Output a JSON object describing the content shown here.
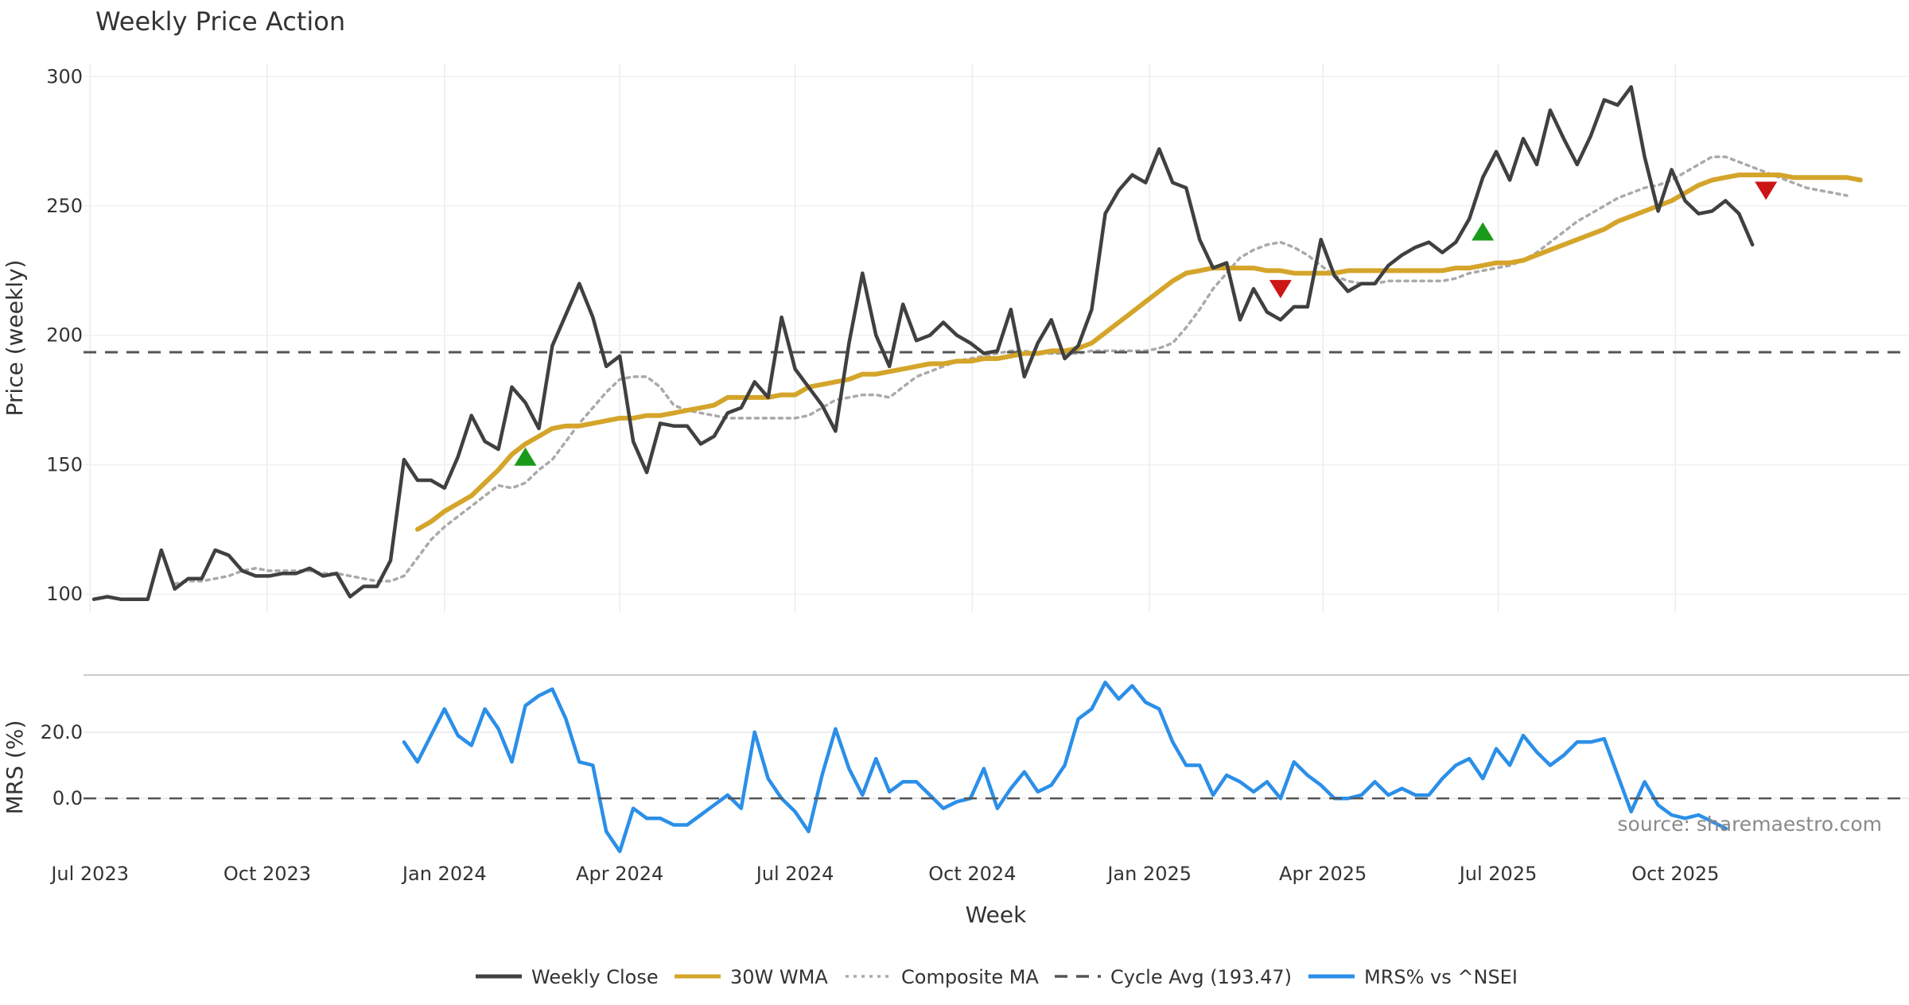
{
  "chart_data": {
    "type": "line",
    "title": "Weekly Price Action",
    "source_note": "source: sharemaestro.com",
    "xlabel": "Week",
    "x_range": [
      "2023-07-03",
      "2025-12-15"
    ],
    "x_ticks": [
      {
        "label": "Jul 2023",
        "date": "2023-07-01"
      },
      {
        "label": "Oct 2023",
        "date": "2023-10-01"
      },
      {
        "label": "Jan 2024",
        "date": "2024-01-01"
      },
      {
        "label": "Apr 2024",
        "date": "2024-04-01"
      },
      {
        "label": "Jul 2024",
        "date": "2024-07-01"
      },
      {
        "label": "Oct 2024",
        "date": "2024-10-01"
      },
      {
        "label": "Jan 2025",
        "date": "2025-01-01"
      },
      {
        "label": "Apr 2025",
        "date": "2025-04-01"
      },
      {
        "label": "Jul 2025",
        "date": "2025-07-01"
      },
      {
        "label": "Oct 2025",
        "date": "2025-10-01"
      }
    ],
    "price_panel": {
      "ylabel": "Price (weekly)",
      "ylim": [
        93,
        305
      ],
      "y_ticks": [
        100,
        150,
        200,
        250,
        300
      ],
      "series": [
        {
          "name": "Weekly Close",
          "color": "#404040",
          "start": "2023-07-03",
          "values": [
            98,
            99,
            98,
            98,
            98,
            117,
            102,
            106,
            106,
            117,
            115,
            109,
            107,
            107,
            108,
            108,
            110,
            107,
            108,
            99,
            103,
            103,
            113,
            152,
            144,
            144,
            141,
            153,
            169,
            159,
            156,
            180,
            174,
            164,
            196,
            208,
            220,
            207,
            188,
            192,
            159,
            147,
            166,
            165,
            165,
            158,
            161,
            170,
            172,
            182,
            176,
            207,
            187,
            180,
            173,
            163,
            197,
            224,
            200,
            188,
            212,
            198,
            200,
            205,
            200,
            197,
            193,
            194,
            210,
            184,
            197,
            206,
            191,
            196,
            210,
            247,
            256,
            262,
            259,
            272,
            259,
            257,
            237,
            226,
            228,
            206,
            218,
            209,
            206,
            211,
            211,
            237,
            223,
            217,
            220,
            220,
            227,
            231,
            234,
            236,
            232,
            236,
            245,
            261,
            271,
            260,
            276,
            266,
            287,
            276,
            266,
            277,
            291,
            289,
            296,
            269,
            248,
            264,
            252,
            247,
            248,
            252,
            247,
            235
          ]
        },
        {
          "name": "30W WMA",
          "color": "#d4a52a",
          "start": "2023-12-18",
          "values": [
            125,
            128,
            132,
            135,
            138,
            143,
            148,
            154,
            158,
            161,
            164,
            165,
            165,
            166,
            167,
            168,
            168,
            169,
            169,
            170,
            171,
            172,
            173,
            176,
            176,
            176,
            176,
            177,
            177,
            180,
            181,
            182,
            183,
            185,
            185,
            186,
            187,
            188,
            189,
            189,
            190,
            190,
            191,
            191,
            192,
            193,
            193,
            194,
            194,
            195,
            197,
            201,
            205,
            209,
            213,
            217,
            221,
            224,
            225,
            226,
            226,
            226,
            226,
            225,
            225,
            224,
            224,
            224,
            224,
            225,
            225,
            225,
            225,
            225,
            225,
            225,
            225,
            226,
            226,
            227,
            228,
            228,
            229,
            231,
            233,
            235,
            237,
            239,
            241,
            244,
            246,
            248,
            250,
            252,
            255,
            258,
            260,
            261,
            262,
            262,
            262,
            262,
            261,
            261,
            261,
            261,
            261,
            260
          ]
        },
        {
          "name": "Composite MA",
          "color": "#aaaaaa",
          "start": "2023-08-14",
          "values": [
            104,
            105,
            105,
            106,
            107,
            109,
            110,
            109,
            109,
            109,
            109,
            108,
            108,
            107,
            106,
            105,
            105,
            107,
            114,
            121,
            126,
            130,
            134,
            138,
            142,
            141,
            143,
            148,
            152,
            159,
            166,
            172,
            178,
            183,
            184,
            184,
            180,
            173,
            171,
            170,
            169,
            168,
            168,
            168,
            168,
            168,
            168,
            169,
            172,
            175,
            176,
            177,
            177,
            176,
            180,
            184,
            186,
            188,
            190,
            191,
            192,
            193,
            194,
            194,
            193,
            193,
            193,
            193,
            194,
            194,
            194,
            194,
            194,
            195,
            197,
            203,
            210,
            218,
            224,
            230,
            233,
            235,
            236,
            234,
            231,
            227,
            223,
            221,
            220,
            220,
            221,
            221,
            221,
            221,
            221,
            222,
            224,
            225,
            226,
            227,
            229,
            232,
            236,
            240,
            244,
            247,
            250,
            253,
            255,
            257,
            258,
            260,
            263,
            266,
            269,
            269,
            267,
            265,
            263,
            261,
            259,
            257,
            256,
            255,
            254
          ]
        },
        {
          "name": "Cycle Avg (193.47)",
          "color": "#555555",
          "constant": 193.47
        }
      ],
      "markers": [
        {
          "type": "buy",
          "date": "2024-02-12",
          "value": 153,
          "color": "#1a9a1a"
        },
        {
          "type": "sell",
          "date": "2025-03-10",
          "value": 218,
          "color": "#cc1515"
        },
        {
          "type": "buy",
          "date": "2025-06-23",
          "value": 240,
          "color": "#1a9a1a"
        },
        {
          "type": "sell",
          "date": "2025-11-17",
          "value": 256,
          "color": "#cc1515"
        }
      ]
    },
    "mrs_panel": {
      "ylabel": "MRS (%)",
      "ylim": [
        -17,
        37
      ],
      "y_ticks": [
        0,
        20
      ],
      "y_tick_labels": [
        "0.0",
        "20.0"
      ],
      "series": [
        {
          "name": "MRS% vs ^NSEI",
          "color": "#2b8fe8",
          "start": "2023-12-11",
          "values": [
            17,
            11,
            19,
            27,
            19,
            16,
            27,
            21,
            11,
            28,
            31,
            33,
            24,
            11,
            10,
            -10,
            -16,
            -3,
            -6,
            -6,
            -8,
            -8,
            -5,
            -2,
            1,
            -3,
            20,
            6,
            0,
            -4,
            -10,
            7,
            21,
            9,
            1,
            12,
            2,
            5,
            5,
            1,
            -3,
            -1,
            0,
            9,
            -3,
            3,
            8,
            2,
            4,
            10,
            24,
            27,
            35,
            30,
            34,
            29,
            27,
            17,
            10,
            10,
            1,
            7,
            5,
            2,
            5,
            0,
            11,
            7,
            4,
            0,
            0,
            1,
            5,
            1,
            3,
            1,
            1,
            6,
            10,
            12,
            6,
            15,
            10,
            19,
            14,
            10,
            13,
            17,
            17,
            18,
            7,
            -4,
            5,
            -2,
            -5,
            -6,
            -5,
            -7,
            -9
          ]
        },
        {
          "name": "zero",
          "constant": 0
        }
      ]
    },
    "legend": {
      "position": "bottom-center",
      "entries": [
        {
          "label": "Weekly Close",
          "color": "#404040",
          "style": "solid"
        },
        {
          "label": "30W WMA",
          "color": "#d4a52a",
          "style": "solid"
        },
        {
          "label": "Composite MA",
          "color": "#aaaaaa",
          "style": "dotted"
        },
        {
          "label": "Cycle Avg (193.47)",
          "color": "#555555",
          "style": "dashed"
        },
        {
          "label": "MRS% vs ^NSEI",
          "color": "#2b8fe8",
          "style": "solid"
        }
      ]
    }
  }
}
